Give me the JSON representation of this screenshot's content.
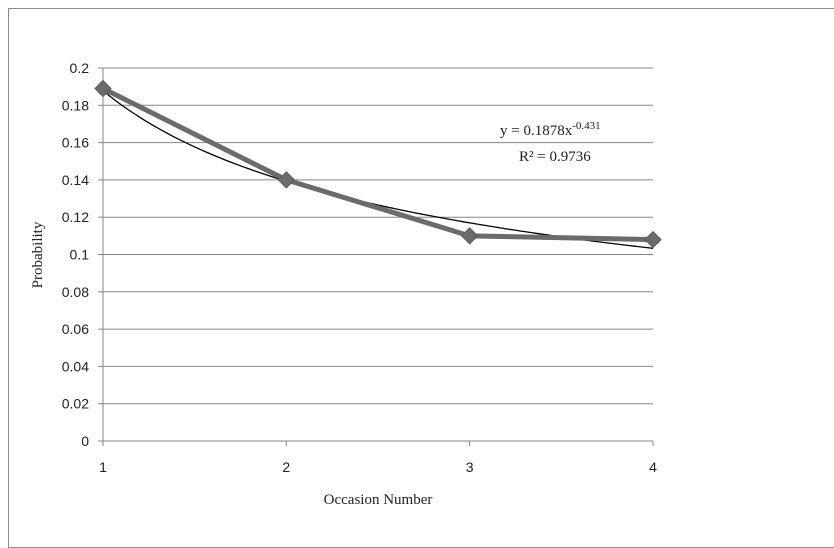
{
  "chart_data": {
    "type": "line",
    "xlabel": "Occasion Number",
    "ylabel": "Probability",
    "x": [
      1,
      2,
      3,
      4
    ],
    "xlim": [
      1,
      4
    ],
    "ylim": [
      0,
      0.2
    ],
    "y_ticks": [
      "0",
      "0.02",
      "0.04",
      "0.06",
      "0.08",
      "0.1",
      "0.12",
      "0.14",
      "0.16",
      "0.18",
      "0.2"
    ],
    "x_ticks": [
      "1",
      "2",
      "3",
      "4"
    ],
    "grid": "horizontal",
    "series": [
      {
        "values": [
          0.189,
          0.14,
          0.11,
          0.108
        ],
        "color": "#6b6b6b",
        "marker": "diamond"
      }
    ],
    "trendline": {
      "type": "power",
      "a": 0.1878,
      "b": -0.431,
      "color": "#000000",
      "equation_prefix": "y = 0.1878x",
      "equation_exponent": "-0.431",
      "r_squared": "R² = 0.9736"
    }
  }
}
